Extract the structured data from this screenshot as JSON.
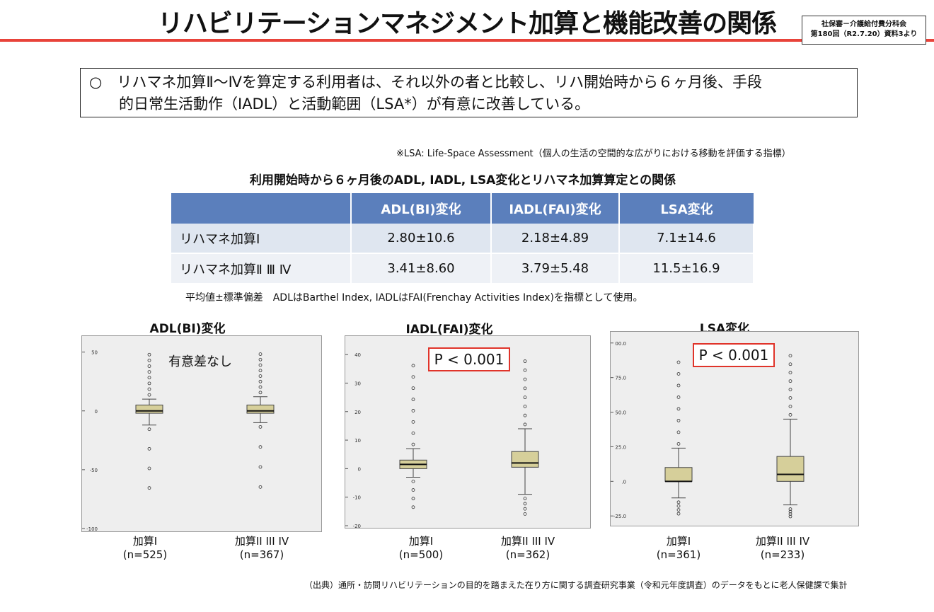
{
  "title": "リハビリテーションマネジメント加算と機能改善の関係",
  "source_badge": {
    "line1": "社保審－介護給付費分科会",
    "line2": "第180回（R2.7.20）資料3より"
  },
  "summary": {
    "line1": "○　リハマネ加算Ⅱ～Ⅳを算定する利用者は、それ以外の者と比較し、リハ開始時から６ヶ月後、手段",
    "line2": "的日常生活動作（IADL）と活動範囲（LSA*）が有意に改善している。"
  },
  "lsa_note": "※LSA: Life-Space Assessment（個人の生活の空間的な広がりにおける移動を評価する指標）",
  "table": {
    "title": "利用開始時から６ヶ月後のADL, IADL, LSA変化とリハマネ加算算定との関係",
    "headers": [
      "",
      "ADL(BI)変化",
      "IADL(FAI)変化",
      "LSA変化"
    ],
    "rows": [
      [
        "リハマネ加算I",
        "2.80±10.6",
        "2.18±4.89",
        "7.1±14.6"
      ],
      [
        "リハマネ加算Ⅱ Ⅲ Ⅳ",
        "3.41±8.60",
        "3.79±5.48",
        "11.5±16.9"
      ]
    ],
    "note": "平均値±標準偏差　ADLはBarthel Index, IADLはFAI(Frenchay Activities Index)を指標として使用。"
  },
  "chart_data": [
    {
      "type": "box",
      "title": "ADL(BI)変化",
      "annotation": "有意差なし",
      "ylim": [
        -100,
        60
      ],
      "yticks": [
        50,
        0,
        -50,
        -100
      ],
      "groups": [
        {
          "name": "加算I",
          "n": "(n=525)",
          "q1": -2,
          "median": 0,
          "q3": 5,
          "whisker_low": -12,
          "whisker_high": 10
        },
        {
          "name": "加算II III IV",
          "n": "(n=367)",
          "q1": -2,
          "median": 0,
          "q3": 5,
          "whisker_low": -10,
          "whisker_high": 12
        }
      ]
    },
    {
      "type": "box",
      "title": "IADL(FAI)変化",
      "annotation": "P < 0.001",
      "ylim": [
        -20,
        45
      ],
      "yticks": [
        40,
        30,
        20,
        10,
        0,
        -10,
        -20
      ],
      "groups": [
        {
          "name": "加算I",
          "n": "(n=500)",
          "q1": 0,
          "median": 1.5,
          "q3": 3,
          "whisker_low": -3,
          "whisker_high": 7
        },
        {
          "name": "加算II III IV",
          "n": "(n=362)",
          "q1": 0.5,
          "median": 2,
          "q3": 6,
          "whisker_low": -9,
          "whisker_high": 14
        }
      ]
    },
    {
      "type": "box",
      "title": "LSA変化",
      "annotation": "P < 0.001",
      "ylim": [
        -30,
        105
      ],
      "yticks": [
        100,
        75,
        50,
        25,
        0,
        -25
      ],
      "tick_labels": [
        "00.0",
        "75.0",
        "50.0",
        "25.0",
        ".0",
        "-25.0"
      ],
      "groups": [
        {
          "name": "加算I",
          "n": "(n=361)",
          "q1": 0,
          "median": 0,
          "q3": 10,
          "whisker_low": -12,
          "whisker_high": 24
        },
        {
          "name": "加算II III IV",
          "n": "(n=233)",
          "q1": 0,
          "median": 5,
          "q3": 18,
          "whisker_low": -17,
          "whisker_high": 45
        }
      ]
    }
  ],
  "footer": "（出典）通所・訪問リハビリテーションの目的を踏まえた在り方に関する調査研究事業（令和元年度調査）のデータをもとに老人保健課で集計"
}
